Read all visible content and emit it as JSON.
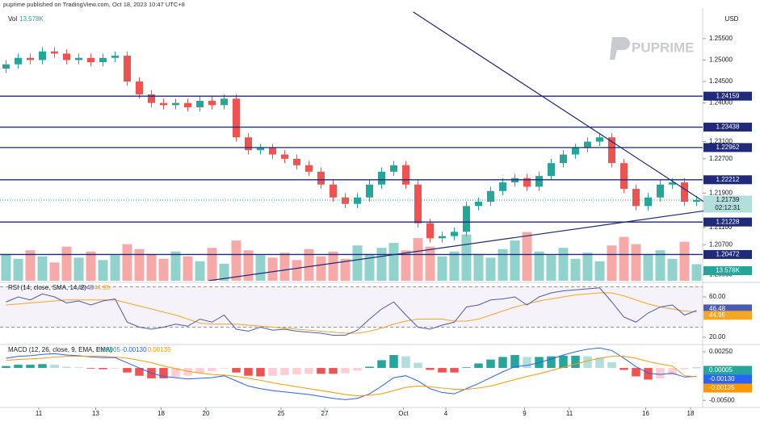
{
  "chart_data": {
    "type": "candlestick",
    "header": "puprime published on TradingView.com, Oct 18, 2023 10:47 UTC+8",
    "currency": "USD",
    "watermark": "PUPRIME",
    "up_color": "#26a69a",
    "down_color": "#ef5350",
    "xlim": [
      -0.5,
      57.5
    ],
    "xticks": [
      {
        "value": 2.7,
        "label": "11"
      },
      {
        "value": 7.4,
        "label": "13"
      },
      {
        "value": 12.8,
        "label": "18"
      },
      {
        "value": 16.5,
        "label": "20"
      },
      {
        "value": 22.7,
        "label": "25"
      },
      {
        "value": 26.3,
        "label": "27"
      },
      {
        "value": 32.8,
        "label": "Oct"
      },
      {
        "value": 36.3,
        "label": "4"
      },
      {
        "value": 42.8,
        "label": "9"
      },
      {
        "value": 46.5,
        "label": "11"
      },
      {
        "value": 52.8,
        "label": "16"
      },
      {
        "value": 56.5,
        "label": "18"
      }
    ],
    "ylim": [
      1.1986,
      1.2621
    ],
    "yticks": [
      {
        "value": 1.255,
        "label": "1.25500"
      },
      {
        "value": 1.25,
        "label": "1.25000"
      },
      {
        "value": 1.245,
        "label": "1.24500"
      },
      {
        "value": 1.24,
        "label": "1.24000"
      },
      {
        "value": 1.231,
        "label": "1.23100"
      },
      {
        "value": 1.227,
        "label": "1.22700"
      },
      {
        "value": 1.219,
        "label": "1.21900"
      },
      {
        "value": 1.211,
        "label": "1.21100"
      },
      {
        "value": 1.207,
        "label": "1.20700"
      },
      {
        "value": 1.2,
        "label": "1.20000"
      }
    ],
    "open": [
      1.248,
      1.249,
      1.2505,
      1.25,
      1.252,
      1.2515,
      1.25,
      1.2505,
      1.2495,
      1.2505,
      1.251,
      1.245,
      1.242,
      1.24,
      1.2395,
      1.24,
      1.239,
      1.2405,
      1.2395,
      1.241,
      1.232,
      1.229,
      1.2295,
      1.228,
      1.227,
      1.2255,
      1.224,
      1.221,
      1.218,
      1.2165,
      1.218,
      1.221,
      1.224,
      1.2255,
      1.221,
      1.212,
      1.2085,
      1.209,
      1.21,
      1.216,
      1.217,
      1.2195,
      1.2215,
      1.2225,
      1.2205,
      1.223,
      1.226,
      1.228,
      1.2295,
      1.231,
      1.232,
      1.226,
      1.22,
      1.216,
      1.218,
      1.221,
      1.2215,
      1.217
    ],
    "high": [
      1.25,
      1.2515,
      1.2515,
      1.253,
      1.253,
      1.2525,
      1.2515,
      1.2515,
      1.2515,
      1.252,
      1.252,
      1.246,
      1.243,
      1.241,
      1.241,
      1.241,
      1.2415,
      1.2415,
      1.242,
      1.242,
      1.233,
      1.2305,
      1.2305,
      1.229,
      1.228,
      1.2265,
      1.225,
      1.222,
      1.219,
      1.219,
      1.222,
      1.225,
      1.2265,
      1.2265,
      1.222,
      1.213,
      1.21,
      1.211,
      1.217,
      1.218,
      1.2205,
      1.2225,
      1.2235,
      1.2235,
      1.224,
      1.227,
      1.229,
      1.2305,
      1.232,
      1.233,
      1.233,
      1.227,
      1.221,
      1.219,
      1.222,
      1.2225,
      1.2225,
      1.2184
    ],
    "low": [
      1.247,
      1.248,
      1.249,
      1.249,
      1.2505,
      1.249,
      1.249,
      1.2485,
      1.2485,
      1.2495,
      1.244,
      1.241,
      1.239,
      1.2385,
      1.2385,
      1.238,
      1.238,
      1.2385,
      1.2385,
      1.231,
      1.228,
      1.228,
      1.227,
      1.226,
      1.2245,
      1.223,
      1.22,
      1.217,
      1.2155,
      1.2155,
      1.217,
      1.22,
      1.223,
      1.22,
      1.211,
      1.2075,
      1.2075,
      1.208,
      1.209,
      1.215,
      1.216,
      1.2185,
      1.2205,
      1.2195,
      1.2195,
      1.222,
      1.225,
      1.227,
      1.2285,
      1.23,
      1.225,
      1.219,
      1.215,
      1.215,
      1.217,
      1.22,
      1.216,
      1.216
    ],
    "close": [
      1.249,
      1.2505,
      1.25,
      1.252,
      1.2515,
      1.25,
      1.2505,
      1.2495,
      1.2505,
      1.251,
      1.245,
      1.242,
      1.24,
      1.2395,
      1.24,
      1.239,
      1.2405,
      1.2395,
      1.241,
      1.232,
      1.229,
      1.2295,
      1.228,
      1.227,
      1.2255,
      1.224,
      1.221,
      1.218,
      1.2165,
      1.218,
      1.221,
      1.224,
      1.2255,
      1.221,
      1.212,
      1.2085,
      1.209,
      1.21,
      1.216,
      1.217,
      1.2195,
      1.2215,
      1.2225,
      1.2205,
      1.223,
      1.226,
      1.228,
      1.2295,
      1.231,
      1.232,
      1.226,
      1.22,
      1.216,
      1.218,
      1.221,
      1.2215,
      1.217,
      1.2174
    ],
    "levels": [
      {
        "value": 1.24159,
        "label": "1.24159"
      },
      {
        "value": 1.23438,
        "label": "1.23438"
      },
      {
        "value": 1.22962,
        "label": "1.22962"
      },
      {
        "value": 1.22212,
        "label": "1.22212"
      },
      {
        "value": 1.21228,
        "label": "1.21228"
      },
      {
        "value": 1.20472,
        "label": "1.20472"
      }
    ],
    "level_color": "#1f2a7a",
    "trendlines": [
      {
        "x": [
          33.6,
          58.8
        ],
        "y": [
          1.2612,
          1.2148
        ]
      },
      {
        "x": [
          16.7,
          59.2
        ],
        "y": [
          1.1986,
          1.2155
        ]
      }
    ],
    "last_price": {
      "value": 1.21739,
      "label": "1.21739",
      "countdown": "02:12:31"
    },
    "volume": {
      "name": "Vol",
      "last_label": "13.578K",
      "vlim": [
        0,
        45
      ],
      "values": [
        22,
        18,
        25,
        20,
        15,
        28,
        19,
        24,
        17,
        21,
        30,
        26,
        22,
        18,
        24,
        20,
        16,
        27,
        14,
        33,
        25,
        21,
        19,
        23,
        17,
        26,
        20,
        24,
        18,
        29,
        22,
        27,
        31,
        25,
        35,
        28,
        20,
        24,
        38,
        22,
        19,
        26,
        33,
        40,
        24,
        21,
        27,
        18,
        23,
        16,
        29,
        36,
        30,
        22,
        25,
        18,
        32,
        13.578
      ]
    },
    "rsi": {
      "title": "RSI (14, close, SMA, 14, 2)",
      "color": "#4a5bb5",
      "sma_color": "#f5a623",
      "ylim": [
        14.4,
        72.8
      ],
      "yticks": [
        {
          "value": 60,
          "label": "60.00"
        },
        {
          "value": 20,
          "label": "20.00"
        }
      ],
      "band": [
        30,
        70
      ],
      "values": [
        55,
        60,
        57,
        63,
        60,
        54,
        56,
        52,
        56,
        58,
        35,
        30,
        28,
        30,
        33,
        31,
        38,
        35,
        42,
        28,
        26,
        30,
        27,
        28,
        26,
        25,
        24,
        22,
        22,
        27,
        38,
        48,
        55,
        42,
        30,
        28,
        32,
        35,
        50,
        52,
        57,
        58,
        60,
        52,
        60,
        64,
        66,
        67,
        68,
        69,
        55,
        40,
        35,
        44,
        50,
        52,
        42,
        46.48
      ],
      "sma": [
        52,
        53,
        54,
        55,
        56,
        57,
        57,
        57,
        57,
        57,
        54,
        51,
        48,
        45,
        42,
        38,
        34,
        33,
        33,
        33,
        32,
        31,
        30,
        29,
        28,
        27,
        26,
        25,
        24,
        24,
        26,
        29,
        33,
        36,
        38,
        38,
        38,
        36,
        36,
        38,
        42,
        46,
        50,
        53,
        56,
        58,
        60,
        62,
        63,
        64,
        64,
        61,
        57,
        53,
        50,
        48,
        46,
        44.95
      ]
    },
    "macd": {
      "title": "MACD (12, 26, close, 9, EMA, EMA)",
      "color": "#2962ff",
      "signal_color": "#ff9800",
      "ylim": [
        -0.0061,
        0.0035
      ],
      "yticks": [
        {
          "value": 0.0025,
          "label": "0.00250"
        },
        {
          "value": -0.005,
          "label": "-0.00500"
        }
      ],
      "legend_values": [
        "0.00005",
        "-0.00130",
        "-0.00135"
      ],
      "histogram": [
        0.0003,
        0.0005,
        0.0005,
        0.0006,
        0.0005,
        0.0002,
        0.0001,
        -0.0001,
        -0.0002,
        -0.0001,
        -0.0007,
        -0.0012,
        -0.0016,
        -0.0016,
        -0.0014,
        -0.0012,
        -0.0008,
        -0.0005,
        -0.0001,
        -0.0007,
        -0.0012,
        -0.0013,
        -0.0012,
        -0.0011,
        -0.001,
        -0.0009,
        -0.0009,
        -0.0009,
        -0.0008,
        -0.0004,
        0.0002,
        0.0012,
        0.002,
        0.0018,
        0.0008,
        -0.0003,
        -0.0007,
        -0.0007,
        0.0001,
        0.0007,
        0.0013,
        0.0017,
        0.002,
        0.0017,
        0.0017,
        0.0018,
        0.0019,
        0.0019,
        0.0018,
        0.0016,
        0.0009,
        -0.0003,
        -0.0013,
        -0.0018,
        -0.0016,
        -0.0011,
        -0.0002,
        5e-05
      ],
      "values": [
        0.0015,
        0.0018,
        0.0019,
        0.0021,
        0.0022,
        0.002,
        0.0019,
        0.0017,
        0.0016,
        0.0016,
        0.0008,
        0.0,
        -0.0008,
        -0.0013,
        -0.0015,
        -0.0017,
        -0.0016,
        -0.0015,
        -0.0012,
        -0.002,
        -0.0028,
        -0.0032,
        -0.0035,
        -0.0037,
        -0.0039,
        -0.0041,
        -0.0044,
        -0.0047,
        -0.0049,
        -0.0047,
        -0.004,
        -0.0028,
        -0.0015,
        -0.0012,
        -0.002,
        -0.0032,
        -0.0038,
        -0.004,
        -0.0032,
        -0.0024,
        -0.0015,
        -0.0006,
        0.0002,
        0.0004,
        0.0008,
        0.0014,
        0.002,
        0.0025,
        0.0029,
        0.0031,
        0.0027,
        0.0015,
        0.0002,
        -0.0008,
        -0.001,
        -0.0008,
        -0.0014,
        -0.0013
      ],
      "signal": [
        0.0012,
        0.0013,
        0.0014,
        0.0015,
        0.0017,
        0.0018,
        0.0018,
        0.0018,
        0.0018,
        0.0017,
        0.0015,
        0.0012,
        0.0008,
        0.0003,
        -0.0001,
        -0.0005,
        -0.0008,
        -0.001,
        -0.0011,
        -0.0013,
        -0.0016,
        -0.0019,
        -0.0023,
        -0.0026,
        -0.0029,
        -0.0032,
        -0.0035,
        -0.0038,
        -0.0041,
        -0.0043,
        -0.0042,
        -0.004,
        -0.0035,
        -0.003,
        -0.0028,
        -0.0029,
        -0.0031,
        -0.0033,
        -0.0033,
        -0.0031,
        -0.0028,
        -0.0023,
        -0.0018,
        -0.0013,
        -0.0009,
        -0.0004,
        0.0001,
        0.0006,
        0.0011,
        0.0015,
        0.0018,
        0.0018,
        0.0015,
        0.001,
        0.0006,
        0.0003,
        -0.0012,
        -0.00135
      ]
    }
  }
}
